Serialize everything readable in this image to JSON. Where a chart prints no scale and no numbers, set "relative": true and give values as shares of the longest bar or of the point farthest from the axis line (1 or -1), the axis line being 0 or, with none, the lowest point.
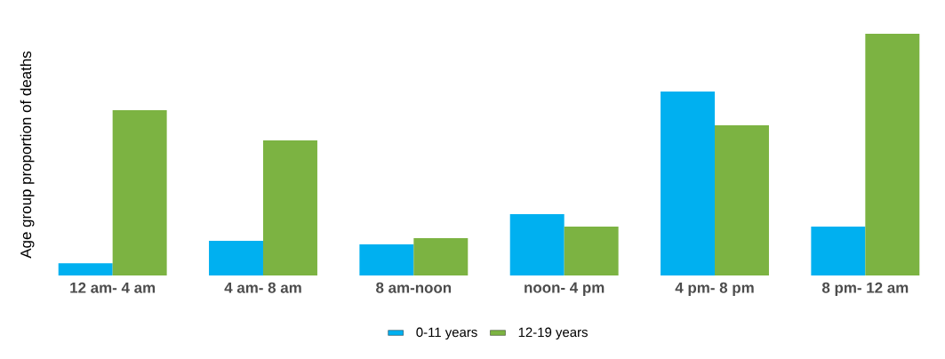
{
  "chart_data": {
    "type": "bar",
    "relative": true,
    "ylabel": "Age group proportion of deaths",
    "categories": [
      "12 am- 4 am",
      "4 am- 8 am",
      "8 am-noon",
      "noon- 4 pm",
      "4 pm- 8 pm",
      "8 pm- 12 am"
    ],
    "series": [
      {
        "name": "0-11 years",
        "color": "#00b0f0",
        "values": [
          0.051,
          0.143,
          0.129,
          0.254,
          0.761,
          0.202
        ]
      },
      {
        "name": "12-19 years",
        "color": "#7cb342",
        "values": [
          0.684,
          0.559,
          0.154,
          0.202,
          0.621,
          1.0
        ]
      }
    ],
    "legend": "bottom"
  }
}
